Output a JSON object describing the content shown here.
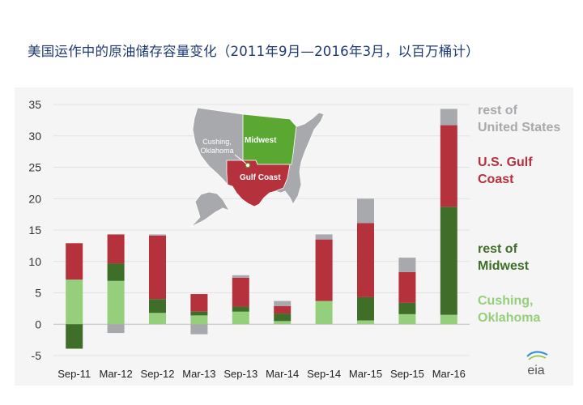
{
  "title": "美国运作中的原油储存容量变化（2011年9月—2016年3月，以百万桶计）",
  "logo_text": "eia",
  "colors": {
    "rest_us": "#a7a9ac",
    "gulf": "#b5313c",
    "rest_midwest": "#3f6e28",
    "cushing": "#95cf7b",
    "map_gray": "#a7a9ac",
    "map_midwest": "#5aa732",
    "map_gulf": "#b5313c"
  },
  "map": {
    "label_midwest": "Midwest",
    "label_cushing_line1": "Cushing,",
    "label_cushing_line2": "Oklahoma",
    "label_gulf": "Gulf Coast"
  },
  "chart_data": {
    "type": "bar",
    "stacked": true,
    "categories": [
      "Sep-11",
      "Mar-12",
      "Sep-12",
      "Mar-13",
      "Sep-13",
      "Mar-14",
      "Sep-14",
      "Mar-15",
      "Sep-15",
      "Mar-16"
    ],
    "ylim": [
      -5,
      35
    ],
    "yticks": [
      -5,
      0,
      5,
      10,
      15,
      20,
      25,
      30,
      35
    ],
    "grid": true,
    "legend_position": "right",
    "series": [
      {
        "name": "Cushing, Oklahoma",
        "key": "cushing",
        "values": [
          7.1,
          6.9,
          1.8,
          1.4,
          2.0,
          0.5,
          3.7,
          0.6,
          1.6,
          1.5
        ]
      },
      {
        "name": "rest of Midwest",
        "key": "rest_midwest",
        "values": [
          -3.9,
          2.8,
          2.2,
          0.6,
          0.8,
          1.2,
          0.0,
          3.7,
          1.8,
          17.2
        ]
      },
      {
        "name": "U.S. Gulf Coast",
        "key": "gulf",
        "values": [
          5.8,
          4.6,
          10.1,
          2.8,
          4.6,
          1.2,
          9.8,
          11.8,
          4.9,
          13.0
        ]
      },
      {
        "name": "rest of United States",
        "key": "rest_us",
        "values": [
          0.0,
          -1.4,
          0.2,
          -1.6,
          0.4,
          0.8,
          0.8,
          3.9,
          2.3,
          2.6
        ]
      }
    ]
  },
  "legend": [
    {
      "key": "rest_us",
      "line1": "rest of",
      "line2": "United States"
    },
    {
      "key": "gulf",
      "line1": "U.S. Gulf",
      "line2": "Coast"
    },
    {
      "key": "rest_midwest",
      "line1": "rest of",
      "line2": "Midwest"
    },
    {
      "key": "cushing",
      "line1": "Cushing,",
      "line2": "Oklahoma"
    }
  ]
}
